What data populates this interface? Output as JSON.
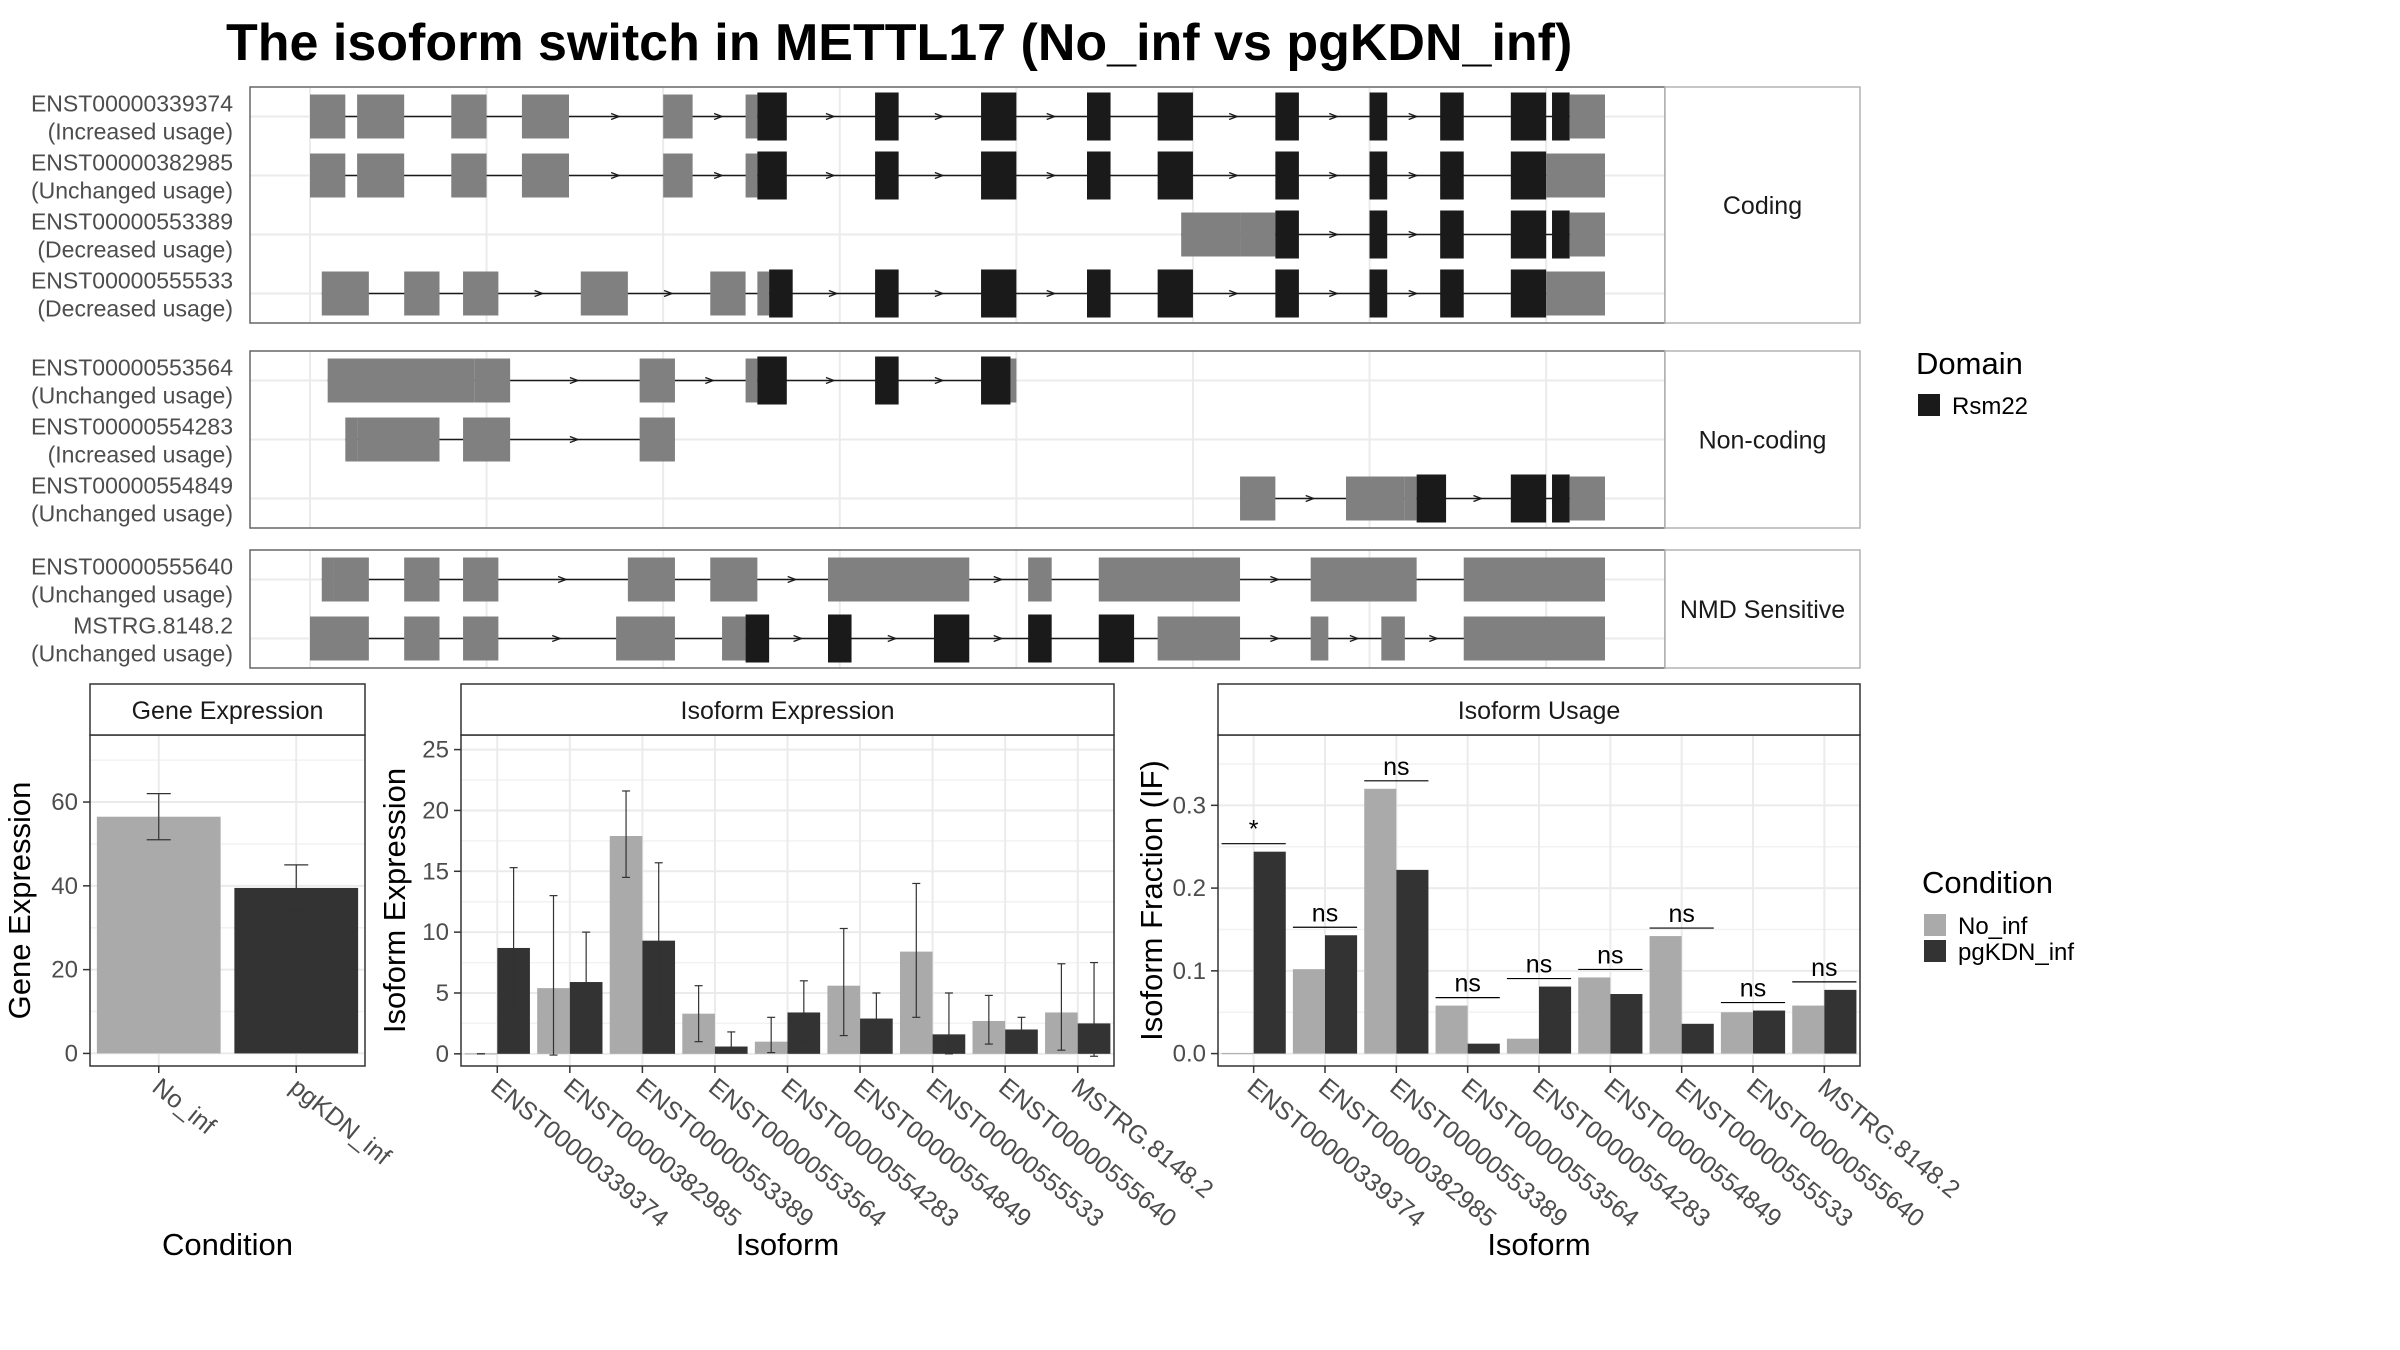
{
  "title": "The isoform switch in METTL17 (No_inf vs pgKDN_inf)",
  "colors": {
    "no_inf": "#aaaaaa",
    "pgkdn_inf": "#333333",
    "domain": "#1a1a1a",
    "exon": "#808080",
    "panel_border": "#666666",
    "grid": "#ebebeb"
  },
  "structure": {
    "domain_legend": {
      "title": "Domain",
      "items": [
        "Rsm22"
      ]
    },
    "groups": [
      {
        "label": "Coding",
        "transcripts": [
          {
            "id": "ENST00000339374",
            "usage": "(Increased usage)",
            "exons": [
              [
                0,
                3,
                "u"
              ],
              [
                4,
                8,
                "u"
              ],
              [
                12,
                15,
                "u"
              ],
              [
                18,
                22,
                "u"
              ],
              [
                30,
                32.5,
                "u"
              ],
              [
                37,
                38,
                "u"
              ],
              [
                38,
                40.5,
                "d"
              ],
              [
                48,
                50,
                "d"
              ],
              [
                57,
                60,
                "d"
              ],
              [
                66,
                68,
                "d"
              ],
              [
                72,
                75,
                "d"
              ],
              [
                82,
                84,
                "d"
              ],
              [
                90,
                91.5,
                "d"
              ],
              [
                96,
                98,
                "d"
              ],
              [
                102,
                105,
                "d"
              ],
              [
                105.5,
                107,
                "d"
              ],
              [
                107,
                110,
                "u"
              ]
            ]
          },
          {
            "id": "ENST00000382985",
            "usage": "(Unchanged usage)",
            "exons": [
              [
                0,
                3,
                "u"
              ],
              [
                4,
                8,
                "u"
              ],
              [
                12,
                15,
                "u"
              ],
              [
                18,
                22,
                "u"
              ],
              [
                30,
                32.5,
                "u"
              ],
              [
                37,
                38,
                "u"
              ],
              [
                38,
                40.5,
                "d"
              ],
              [
                48,
                50,
                "d"
              ],
              [
                57,
                60,
                "d"
              ],
              [
                66,
                68,
                "d"
              ],
              [
                72,
                75,
                "d"
              ],
              [
                82,
                84,
                "d"
              ],
              [
                90,
                91.5,
                "d"
              ],
              [
                96,
                98,
                "d"
              ],
              [
                102,
                105,
                "d"
              ],
              [
                105,
                110,
                "u"
              ]
            ]
          },
          {
            "id": "ENST00000553389",
            "usage": "(Decreased usage)",
            "exons": [
              [
                74,
                79,
                "u"
              ],
              [
                79,
                82,
                "u"
              ],
              [
                82,
                84,
                "d"
              ],
              [
                90,
                91.5,
                "d"
              ],
              [
                96,
                98,
                "d"
              ],
              [
                102,
                105,
                "d"
              ],
              [
                105.5,
                107,
                "d"
              ],
              [
                107,
                110,
                "u"
              ]
            ]
          },
          {
            "id": "ENST00000555533",
            "usage": "(Decreased usage)",
            "exons": [
              [
                1,
                5,
                "u"
              ],
              [
                8,
                11,
                "u"
              ],
              [
                13,
                16,
                "u"
              ],
              [
                23,
                27,
                "u"
              ],
              [
                34,
                37,
                "u"
              ],
              [
                38,
                39,
                "u"
              ],
              [
                39,
                41,
                "d"
              ],
              [
                48,
                50,
                "d"
              ],
              [
                57,
                60,
                "d"
              ],
              [
                66,
                68,
                "d"
              ],
              [
                72,
                75,
                "d"
              ],
              [
                82,
                84,
                "d"
              ],
              [
                90,
                91.5,
                "d"
              ],
              [
                96,
                98,
                "d"
              ],
              [
                102,
                105,
                "d"
              ],
              [
                105,
                110,
                "u"
              ]
            ]
          }
        ]
      },
      {
        "label": "Non-coding",
        "transcripts": [
          {
            "id": "ENST00000553564",
            "usage": "(Unchanged usage)",
            "exons": [
              [
                1.5,
                14,
                "u"
              ],
              [
                14,
                17,
                "u"
              ],
              [
                28,
                31,
                "u"
              ],
              [
                37,
                38,
                "u"
              ],
              [
                38,
                40.5,
                "d"
              ],
              [
                48,
                50,
                "d"
              ],
              [
                57,
                59.5,
                "d"
              ],
              [
                59.5,
                60,
                "u"
              ]
            ]
          },
          {
            "id": "ENST00000554283",
            "usage": "(Increased usage)",
            "exons": [
              [
                3,
                4,
                "u"
              ],
              [
                4,
                11,
                "u"
              ],
              [
                13,
                17,
                "u"
              ],
              [
                28,
                31,
                "u"
              ]
            ]
          },
          {
            "id": "ENST00000554849",
            "usage": "(Unchanged usage)",
            "exons": [
              [
                79,
                82,
                "u"
              ],
              [
                88,
                93,
                "u"
              ],
              [
                93,
                94,
                "u"
              ],
              [
                94,
                96.5,
                "d"
              ],
              [
                102,
                105,
                "d"
              ],
              [
                105.5,
                107,
                "d"
              ],
              [
                107,
                110,
                "u"
              ]
            ]
          }
        ]
      },
      {
        "label": "NMD Sensitive",
        "transcripts": [
          {
            "id": "ENST00000555640",
            "usage": "(Unchanged usage)",
            "exons": [
              [
                1,
                2,
                "u"
              ],
              [
                2,
                5,
                "u"
              ],
              [
                8,
                11,
                "u"
              ],
              [
                13,
                16,
                "u"
              ],
              [
                27,
                31,
                "u"
              ],
              [
                34,
                38,
                "u"
              ],
              [
                44,
                56,
                "u"
              ],
              [
                61,
                63,
                "u"
              ],
              [
                67,
                79,
                "u"
              ],
              [
                85,
                94,
                "u"
              ],
              [
                98,
                110,
                "u"
              ]
            ]
          },
          {
            "id": "MSTRG.8148.2",
            "usage": "(Unchanged usage)",
            "exons": [
              [
                0,
                5,
                "u"
              ],
              [
                8,
                11,
                "u"
              ],
              [
                13,
                16,
                "u"
              ],
              [
                26,
                31,
                "u"
              ],
              [
                35,
                37,
                "u"
              ],
              [
                37,
                39,
                "d"
              ],
              [
                44,
                46,
                "d"
              ],
              [
                53,
                56,
                "d"
              ],
              [
                61,
                63,
                "d"
              ],
              [
                67,
                70,
                "d"
              ],
              [
                72,
                79,
                "u"
              ],
              [
                85,
                86.5,
                "u"
              ],
              [
                91,
                93,
                "u"
              ],
              [
                98,
                110,
                "u"
              ]
            ]
          }
        ]
      }
    ]
  },
  "chart_data": [
    {
      "type": "bar",
      "panel_title": "Gene Expression",
      "xlabel": "Condition",
      "ylabel": "Gene Expression",
      "categories": [
        "No_inf",
        "pgKDN_inf"
      ],
      "values": [
        56.5,
        39.5
      ],
      "errors": [
        [
          51,
          62
        ],
        [
          34,
          45
        ]
      ],
      "ylim": [
        -3,
        76
      ],
      "yticks": [
        0,
        20,
        40,
        60
      ],
      "grid": true
    },
    {
      "type": "bar",
      "panel_title": "Isoform Expression",
      "xlabel": "Isoform",
      "ylabel": "Isoform Expression",
      "categories": [
        "ENST00000339374",
        "ENST00000382985",
        "ENST00000553389",
        "ENST00000553564",
        "ENST00000554283",
        "ENST00000554849",
        "ENST00000555533",
        "ENST00000555640",
        "MSTRG.8148.2"
      ],
      "series": [
        {
          "name": "No_inf",
          "values": [
            0,
            5.4,
            17.9,
            3.3,
            1.0,
            5.6,
            8.4,
            2.7,
            3.4
          ],
          "errors": [
            [
              0,
              0
            ],
            [
              -0.1,
              13
            ],
            [
              14.5,
              21.6
            ],
            [
              1,
              5.6
            ],
            [
              0.1,
              3
            ],
            [
              1.5,
              10.3
            ],
            [
              3,
              14
            ],
            [
              0.8,
              4.8
            ],
            [
              0.3,
              7.4
            ]
          ]
        },
        {
          "name": "pgKDN_inf",
          "values": [
            8.7,
            5.9,
            9.3,
            0.6,
            3.4,
            2.9,
            1.6,
            2.0,
            2.5
          ],
          "errors": [
            [
              3.5,
              15.3
            ],
            [
              1.9,
              10
            ],
            [
              3,
              15.7
            ],
            [
              0.1,
              1.8
            ],
            [
              1,
              6
            ],
            [
              0.8,
              5
            ],
            [
              0,
              5
            ],
            [
              1,
              3
            ],
            [
              -0.2,
              7.5
            ]
          ]
        }
      ],
      "ylim": [
        -1,
        26.2
      ],
      "yticks": [
        0,
        5,
        10,
        15,
        20,
        25
      ],
      "grid": true
    },
    {
      "type": "bar",
      "panel_title": "Isoform Usage",
      "xlabel": "Isoform",
      "ylabel": "Isoform Fraction (IF)",
      "categories": [
        "ENST00000339374",
        "ENST00000382985",
        "ENST00000553389",
        "ENST00000553564",
        "ENST00000554283",
        "ENST00000554849",
        "ENST00000555533",
        "ENST00000555640",
        "MSTRG.8148.2"
      ],
      "series": [
        {
          "name": "No_inf",
          "values": [
            0,
            0.102,
            0.32,
            0.058,
            0.018,
            0.092,
            0.142,
            0.05,
            0.058
          ]
        },
        {
          "name": "pgKDN_inf",
          "values": [
            0.244,
            0.143,
            0.222,
            0.012,
            0.081,
            0.072,
            0.036,
            0.052,
            0.077
          ]
        }
      ],
      "significance": [
        "*",
        "ns",
        "ns",
        "ns",
        "ns",
        "ns",
        "ns",
        "ns",
        "ns"
      ],
      "ylim": [
        -0.015,
        0.385
      ],
      "yticks": [
        0.0,
        0.1,
        0.2,
        0.3
      ],
      "ytick_labels": [
        "0.0",
        "0.1",
        "0.2",
        "0.3"
      ],
      "grid": true
    }
  ],
  "condition_legend": {
    "title": "Condition",
    "items": [
      "No_inf",
      "pgKDN_inf"
    ]
  }
}
